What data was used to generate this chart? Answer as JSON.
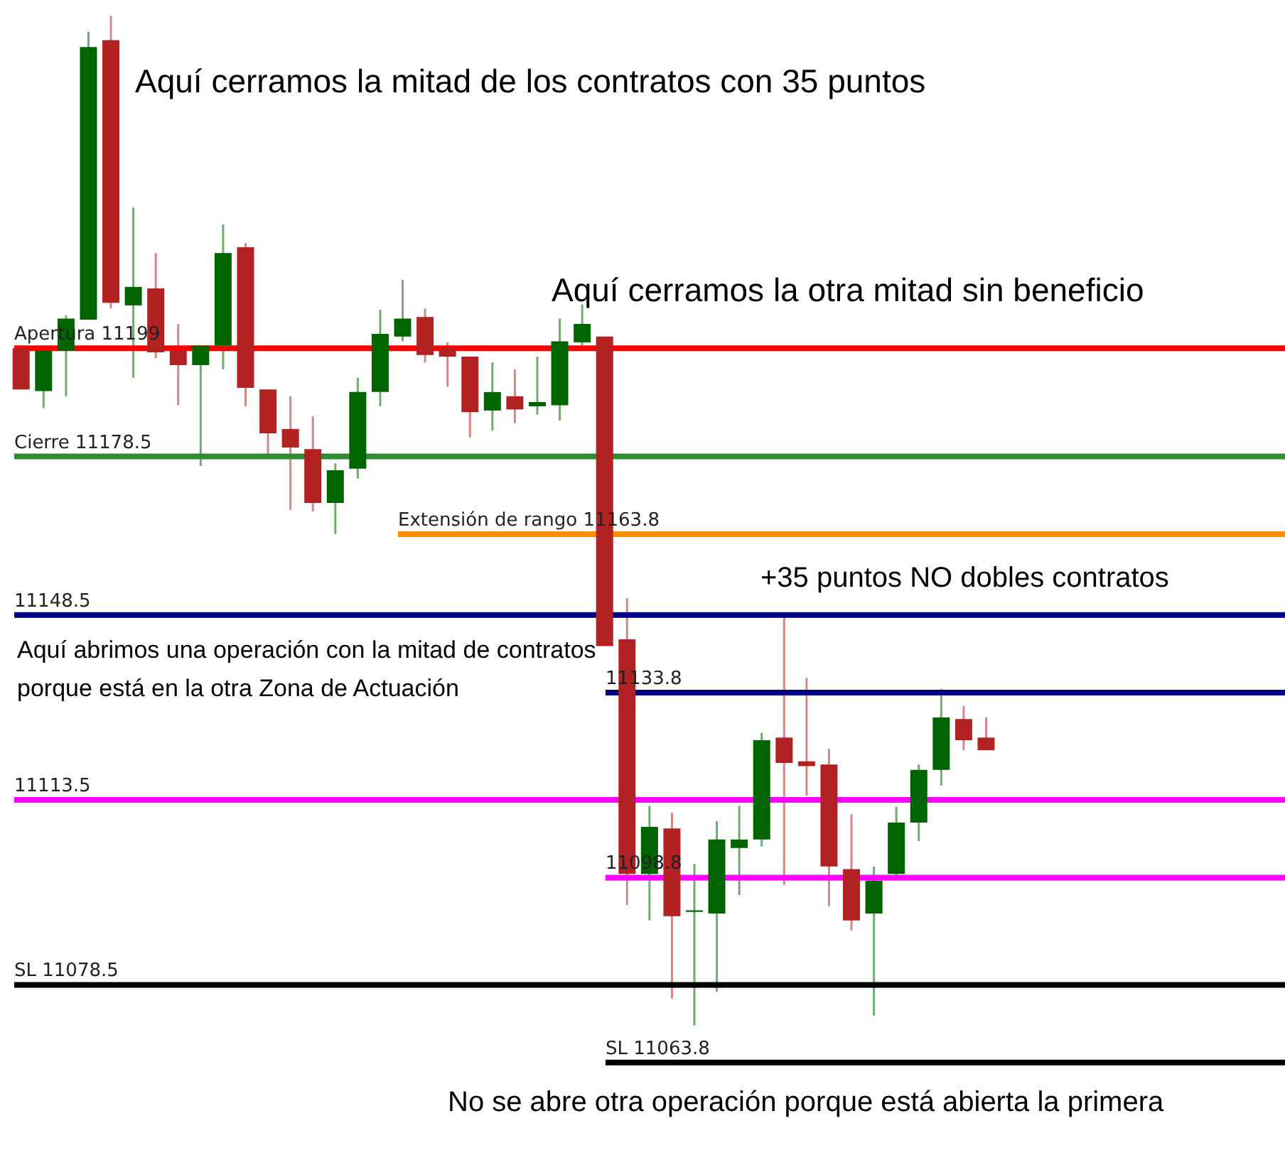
{
  "chart_data": {
    "type": "candlestick",
    "categories": [
      null,
      null,
      null,
      null,
      null,
      null,
      null,
      null,
      null,
      null,
      null,
      null,
      null,
      null,
      null,
      null,
      null,
      null,
      null,
      null,
      null,
      null,
      null,
      null,
      null,
      null,
      null,
      null,
      null,
      null,
      null,
      null,
      null,
      null,
      null,
      null,
      null,
      null,
      null,
      null,
      null,
      null,
      null,
      null
    ],
    "ohlc": [
      [
        11199,
        11199.5,
        11191.2,
        11191.2
      ],
      [
        11190.9,
        11198.5,
        11187.7,
        11198.5
      ],
      [
        11198.5,
        11205.2,
        11189.9,
        11204.6
      ],
      [
        11204.4,
        11258.9,
        11204.4,
        11256.0
      ],
      [
        11257.3,
        11261.9,
        11206.5,
        11207.6
      ],
      [
        11207.1,
        11225.6,
        11193.4,
        11210.6
      ],
      [
        11210.3,
        11217.0,
        11197.1,
        11198.2
      ],
      [
        11198.5,
        11203.6,
        11188.2,
        11195.8
      ],
      [
        11195.8,
        11199.5,
        11176.7,
        11199.5
      ],
      [
        11199.5,
        11222.4,
        11195.0,
        11217.0
      ],
      [
        11218.1,
        11218.9,
        11188.0,
        11191.5
      ],
      [
        11191.2,
        11191.2,
        11178.8,
        11182.9
      ],
      [
        11183.7,
        11189.9,
        11168.4,
        11180.2
      ],
      [
        11179.9,
        11186.1,
        11168.1,
        11169.7
      ],
      [
        11169.7,
        11177.2,
        11163.8,
        11175.9
      ],
      [
        11176.2,
        11193.4,
        11174.3,
        11190.7
      ],
      [
        11190.7,
        11206.3,
        11188.0,
        11201.7
      ],
      [
        11201.2,
        11211.9,
        11200.3,
        11204.6
      ],
      [
        11204.9,
        11206.5,
        11196.3,
        11197.7
      ],
      [
        11199,
        11200.1,
        11191.7,
        11197.4
      ],
      [
        11197.4,
        11197.4,
        11182.1,
        11186.9
      ],
      [
        11187.2,
        11196.3,
        11183.4,
        11190.7
      ],
      [
        11189.9,
        11195.0,
        11184.8,
        11187.4
      ],
      [
        11188.0,
        11197.4,
        11186.4,
        11188.8
      ],
      [
        11188.2,
        11204.6,
        11185.3,
        11200.3
      ],
      [
        11200.1,
        11207.3,
        11199.5,
        11203.6
      ],
      [
        11201.2,
        11201.2,
        11142.6,
        11142.6
      ],
      [
        11143.9,
        11151.7,
        11093.6,
        11099.5
      ],
      [
        11099.5,
        11112.4,
        11090.7,
        11108.4
      ],
      [
        11108.1,
        11111.1,
        11075.9,
        11091.5
      ],
      [
        11092.3,
        11101.4,
        11070.8,
        11092.6
      ],
      [
        11092.0,
        11109.5,
        11077.2,
        11106.0
      ],
      [
        11104.4,
        11112.4,
        11095.5,
        11106.0
      ],
      [
        11106.0,
        11126.2,
        11104.7,
        11124.8
      ],
      [
        11125.3,
        11148.5,
        11097.4,
        11120.5
      ],
      [
        11120.8,
        11136.6,
        11114.3,
        11119.9
      ],
      [
        11120.2,
        11123.2,
        11093.4,
        11100.9
      ],
      [
        11100.4,
        11110.8,
        11088.8,
        11090.7
      ],
      [
        11092.0,
        11100.9,
        11072.7,
        11098.2
      ],
      [
        11099.5,
        11112.2,
        11098.8,
        11109.2
      ],
      [
        11109.2,
        11120.2,
        11105.7,
        11119.2
      ],
      [
        11119.2,
        11134.5,
        11116.2,
        11129.1
      ],
      [
        11128.8,
        11131.3,
        11122.9,
        11124.8
      ],
      [
        11125.3,
        11129.1,
        11122.9,
        11122.9
      ]
    ],
    "colors": [
      "#b22222",
      "#006400",
      "#006400",
      "#006400",
      "#b22222",
      "#006400",
      "#b22222",
      "#b22222",
      "#006400",
      "#006400",
      "#b22222",
      "#b22222",
      "#b22222",
      "#b22222",
      "#006400",
      "#006400",
      "#006400",
      "#006400",
      "#b22222",
      "#b22222",
      "#b22222",
      "#006400",
      "#b22222",
      "#006400",
      "#006400",
      "#006400",
      "#b22222",
      "#b22222",
      "#006400",
      "#b22222",
      "#006400",
      "#006400",
      "#006400",
      "#006400",
      "#b22222",
      "#b22222",
      "#b22222",
      "#b22222",
      "#006400",
      "#006400",
      "#006400",
      "#006400",
      "#b22222",
      "#b22222"
    ],
    "ylim": [
      11044.4,
      11264.9
    ],
    "tick_labels": false,
    "ref_lines": [
      {
        "axis": "y",
        "value": 11199,
        "label": "Apertura 11199",
        "color": "#ff0000"
      },
      {
        "axis": "y",
        "value": 11178.5,
        "label": "Cierre 11178.5",
        "color": "#2e8b2e"
      },
      {
        "axis": "y",
        "value": 11163.8,
        "label": "Extensión de rango 11163.8",
        "color": "#ff8c00"
      },
      {
        "axis": "y",
        "value": 11148.5,
        "label": "11148.5",
        "color": "#000080"
      },
      {
        "axis": "y",
        "value": 11133.8,
        "label": "11133.8",
        "color": "#000080"
      },
      {
        "axis": "y",
        "value": 11113.5,
        "label": "11113.5",
        "color": "#ff00ff"
      },
      {
        "axis": "y",
        "value": 11098.8,
        "label": "11098.8",
        "color": "#ff00ff"
      },
      {
        "axis": "y",
        "value": 11078.5,
        "label": "SL 11078.5",
        "color": "#000000"
      },
      {
        "axis": "y",
        "value": 11063.8,
        "label": "SL 11063.8",
        "color": "#000000"
      }
    ],
    "annotations": [
      "Aquí cerramos la mitad de los contratos con 35 puntos",
      "Aquí cerramos la otra mitad sin beneficio",
      "+35 puntos NO dobles contratos",
      "Aquí abrimos una operación con la mitad de contratos\n porque está en la otra Zona de Actuación",
      "No se abre otra operación porque está abierta la primera"
    ]
  }
}
